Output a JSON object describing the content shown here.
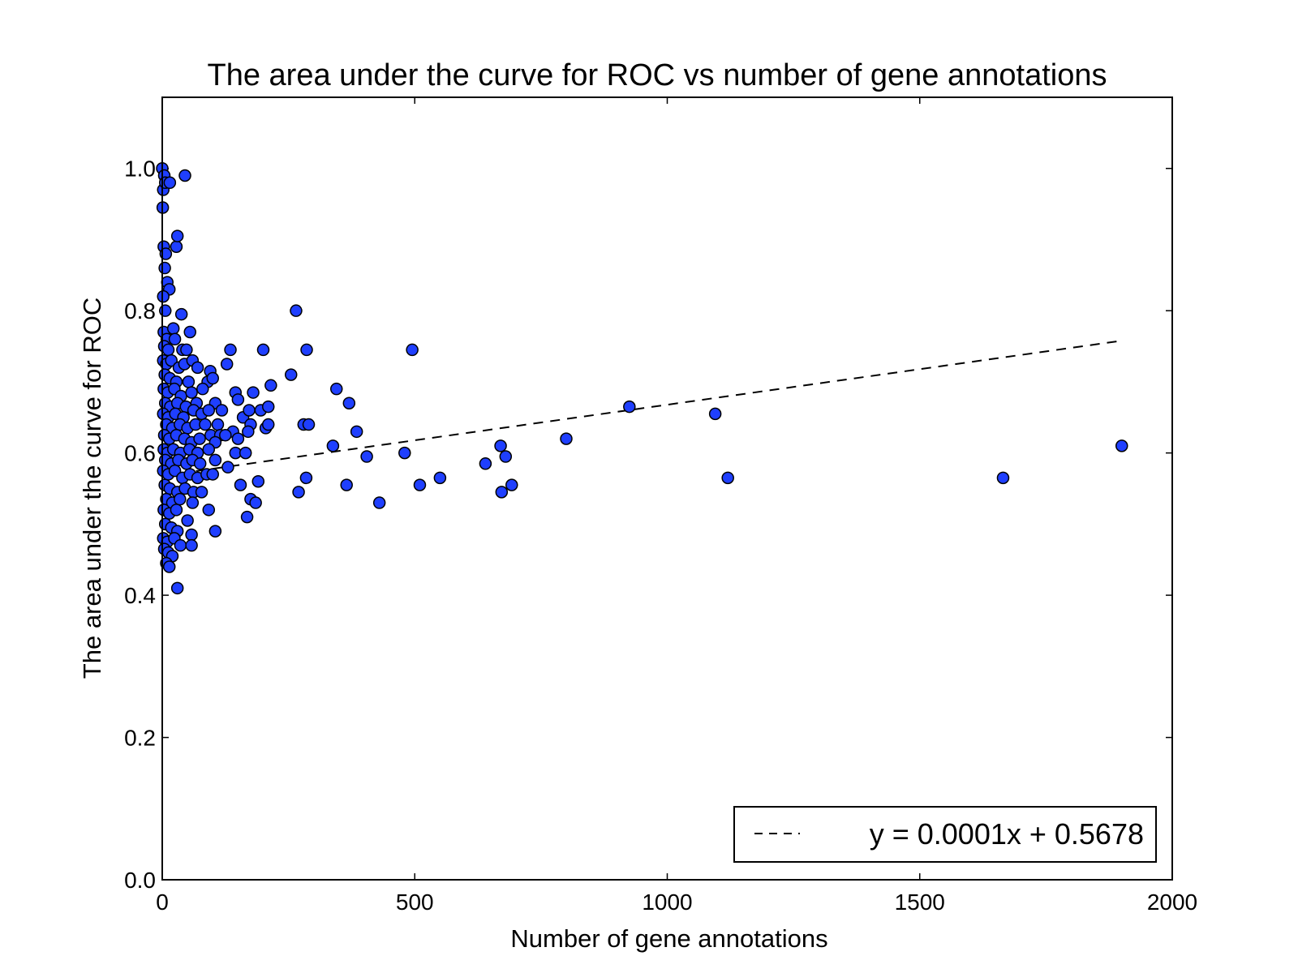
{
  "chart_data": {
    "type": "scatter",
    "title": "The area under the curve for ROC vs number of gene annotations",
    "xlabel": "Number of gene annotations",
    "ylabel": "The area under the curve for ROC",
    "xlim": [
      0,
      2000
    ],
    "ylim": [
      0.0,
      1.1
    ],
    "xticks": [
      "0",
      "500",
      "1000",
      "1500",
      "2000"
    ],
    "yticks": [
      "0.0",
      "0.2",
      "0.4",
      "0.6",
      "0.8",
      "1.0"
    ],
    "grid": false,
    "legend": {
      "position": "lower-right",
      "entry": "y = 0.0001x + 0.5678"
    },
    "colors": {
      "points": "#1f3fff",
      "point_edge": "#000000",
      "fit_line": "#000000"
    },
    "fit_line": {
      "slope": 0.0001,
      "intercept": 0.5678,
      "x_range": [
        0,
        1900
      ],
      "style": "dashed"
    },
    "points": [
      [
        0,
        1.0
      ],
      [
        2,
        0.97
      ],
      [
        4,
        0.99
      ],
      [
        6,
        0.98
      ],
      [
        1,
        0.945
      ],
      [
        15,
        0.98
      ],
      [
        45,
        0.99
      ],
      [
        3,
        0.89
      ],
      [
        7,
        0.88
      ],
      [
        28,
        0.89
      ],
      [
        30,
        0.905
      ],
      [
        5,
        0.86
      ],
      [
        10,
        0.84
      ],
      [
        14,
        0.83
      ],
      [
        2,
        0.82
      ],
      [
        6,
        0.8
      ],
      [
        38,
        0.795
      ],
      [
        3,
        0.77
      ],
      [
        9,
        0.76
      ],
      [
        22,
        0.775
      ],
      [
        55,
        0.77
      ],
      [
        4,
        0.75
      ],
      [
        12,
        0.745
      ],
      [
        25,
        0.76
      ],
      [
        40,
        0.745
      ],
      [
        48,
        0.745
      ],
      [
        2,
        0.73
      ],
      [
        8,
        0.725
      ],
      [
        18,
        0.73
      ],
      [
        33,
        0.72
      ],
      [
        44,
        0.725
      ],
      [
        60,
        0.73
      ],
      [
        70,
        0.72
      ],
      [
        95,
        0.715
      ],
      [
        128,
        0.725
      ],
      [
        135,
        0.745
      ],
      [
        200,
        0.745
      ],
      [
        5,
        0.71
      ],
      [
        15,
        0.705
      ],
      [
        28,
        0.7
      ],
      [
        52,
        0.7
      ],
      [
        90,
        0.7
      ],
      [
        100,
        0.705
      ],
      [
        3,
        0.69
      ],
      [
        11,
        0.685
      ],
      [
        24,
        0.69
      ],
      [
        37,
        0.68
      ],
      [
        58,
        0.685
      ],
      [
        80,
        0.69
      ],
      [
        145,
        0.685
      ],
      [
        180,
        0.685
      ],
      [
        215,
        0.695
      ],
      [
        255,
        0.71
      ],
      [
        6,
        0.67
      ],
      [
        16,
        0.665
      ],
      [
        30,
        0.67
      ],
      [
        47,
        0.665
      ],
      [
        68,
        0.67
      ],
      [
        105,
        0.67
      ],
      [
        150,
        0.675
      ],
      [
        2,
        0.655
      ],
      [
        12,
        0.65
      ],
      [
        26,
        0.655
      ],
      [
        42,
        0.65
      ],
      [
        62,
        0.66
      ],
      [
        78,
        0.655
      ],
      [
        92,
        0.66
      ],
      [
        118,
        0.66
      ],
      [
        160,
        0.65
      ],
      [
        172,
        0.66
      ],
      [
        195,
        0.66
      ],
      [
        210,
        0.665
      ],
      [
        8,
        0.64
      ],
      [
        20,
        0.635
      ],
      [
        35,
        0.64
      ],
      [
        50,
        0.635
      ],
      [
        66,
        0.64
      ],
      [
        85,
        0.64
      ],
      [
        110,
        0.64
      ],
      [
        140,
        0.63
      ],
      [
        175,
        0.64
      ],
      [
        205,
        0.635
      ],
      [
        210,
        0.64
      ],
      [
        280,
        0.64
      ],
      [
        290,
        0.64
      ],
      [
        4,
        0.625
      ],
      [
        14,
        0.62
      ],
      [
        28,
        0.625
      ],
      [
        44,
        0.62
      ],
      [
        58,
        0.615
      ],
      [
        74,
        0.62
      ],
      [
        96,
        0.625
      ],
      [
        115,
        0.625
      ],
      [
        150,
        0.62
      ],
      [
        170,
        0.63
      ],
      [
        105,
        0.615
      ],
      [
        125,
        0.625
      ],
      [
        3,
        0.605
      ],
      [
        10,
        0.6
      ],
      [
        22,
        0.605
      ],
      [
        36,
        0.6
      ],
      [
        54,
        0.605
      ],
      [
        70,
        0.6
      ],
      [
        92,
        0.605
      ],
      [
        145,
        0.6
      ],
      [
        165,
        0.6
      ],
      [
        6,
        0.59
      ],
      [
        18,
        0.585
      ],
      [
        32,
        0.59
      ],
      [
        48,
        0.585
      ],
      [
        60,
        0.59
      ],
      [
        75,
        0.585
      ],
      [
        105,
        0.59
      ],
      [
        130,
        0.58
      ],
      [
        2,
        0.575
      ],
      [
        12,
        0.57
      ],
      [
        25,
        0.575
      ],
      [
        40,
        0.565
      ],
      [
        55,
        0.57
      ],
      [
        70,
        0.565
      ],
      [
        88,
        0.57
      ],
      [
        100,
        0.57
      ],
      [
        155,
        0.555
      ],
      [
        190,
        0.56
      ],
      [
        5,
        0.555
      ],
      [
        15,
        0.55
      ],
      [
        30,
        0.545
      ],
      [
        45,
        0.55
      ],
      [
        62,
        0.545
      ],
      [
        78,
        0.545
      ],
      [
        175,
        0.535
      ],
      [
        185,
        0.53
      ],
      [
        8,
        0.535
      ],
      [
        20,
        0.53
      ],
      [
        35,
        0.535
      ],
      [
        60,
        0.53
      ],
      [
        3,
        0.52
      ],
      [
        14,
        0.515
      ],
      [
        28,
        0.52
      ],
      [
        50,
        0.505
      ],
      [
        92,
        0.52
      ],
      [
        168,
        0.51
      ],
      [
        6,
        0.5
      ],
      [
        18,
        0.495
      ],
      [
        30,
        0.49
      ],
      [
        58,
        0.485
      ],
      [
        105,
        0.49
      ],
      [
        2,
        0.48
      ],
      [
        10,
        0.475
      ],
      [
        24,
        0.48
      ],
      [
        36,
        0.47
      ],
      [
        58,
        0.47
      ],
      [
        4,
        0.465
      ],
      [
        12,
        0.46
      ],
      [
        20,
        0.455
      ],
      [
        8,
        0.445
      ],
      [
        14,
        0.44
      ],
      [
        30,
        0.41
      ],
      [
        265,
        0.8
      ],
      [
        286,
        0.745
      ],
      [
        495,
        0.745
      ],
      [
        345,
        0.69
      ],
      [
        370,
        0.67
      ],
      [
        385,
        0.63
      ],
      [
        338,
        0.61
      ],
      [
        405,
        0.595
      ],
      [
        480,
        0.6
      ],
      [
        285,
        0.565
      ],
      [
        270,
        0.545
      ],
      [
        365,
        0.555
      ],
      [
        430,
        0.53
      ],
      [
        510,
        0.555
      ],
      [
        550,
        0.565
      ],
      [
        640,
        0.585
      ],
      [
        670,
        0.61
      ],
      [
        680,
        0.595
      ],
      [
        672,
        0.545
      ],
      [
        692,
        0.555
      ],
      [
        800,
        0.62
      ],
      [
        925,
        0.665
      ],
      [
        1095,
        0.655
      ],
      [
        1120,
        0.565
      ],
      [
        1665,
        0.565
      ],
      [
        1900,
        0.61
      ]
    ]
  }
}
